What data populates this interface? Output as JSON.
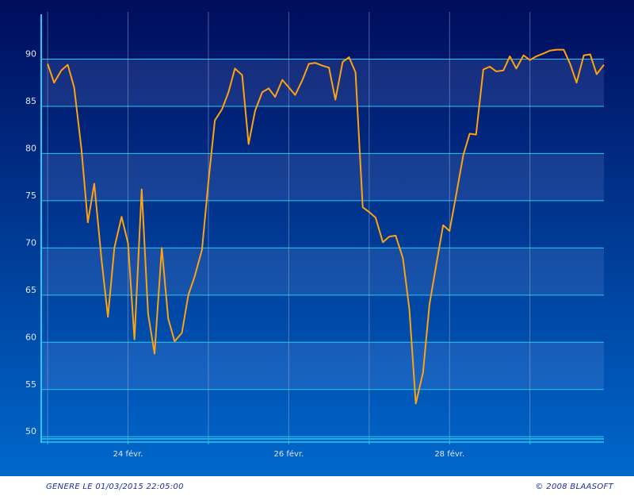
{
  "chart_data": {
    "type": "line",
    "x": [
      23.0,
      23.08,
      23.17,
      23.25,
      23.33,
      23.42,
      23.5,
      23.58,
      23.67,
      23.75,
      23.83,
      23.92,
      24.0,
      24.08,
      24.17,
      24.25,
      24.33,
      24.42,
      24.5,
      24.58,
      24.67,
      24.75,
      24.83,
      24.92,
      25.0,
      25.08,
      25.17,
      25.25,
      25.33,
      25.42,
      25.5,
      25.58,
      25.67,
      25.75,
      25.83,
      25.92,
      26.0,
      26.08,
      26.17,
      26.25,
      26.33,
      26.42,
      26.5,
      26.58,
      26.67,
      26.75,
      26.83,
      26.92,
      27.0,
      27.08,
      27.17,
      27.25,
      27.33,
      27.42,
      27.5,
      27.58,
      27.67,
      27.75,
      27.83,
      27.92,
      28.0,
      28.08,
      28.17,
      28.25,
      28.33,
      28.42,
      28.5,
      28.58,
      28.67,
      28.75,
      28.83,
      28.92,
      29.0,
      29.08,
      29.17,
      29.25,
      29.33,
      29.42,
      29.5,
      29.58,
      29.67,
      29.75,
      29.83,
      29.92
    ],
    "series": [
      {
        "color": "#ffa20f",
        "values": [
          89.5,
          87.5,
          88.8,
          89.4,
          87,
          80.5,
          72.7,
          76.8,
          68.8,
          62.7,
          70,
          73.3,
          70.5,
          60.3,
          76.2,
          63,
          58.8,
          70,
          62.5,
          60.1,
          61,
          65,
          67,
          69.8,
          77,
          83.5,
          84.7,
          86.5,
          89,
          88.3,
          81,
          84.5,
          86.5,
          86.9,
          86,
          87.8,
          87,
          86.2,
          87.8,
          89.5,
          89.6,
          89.3,
          89.1,
          85.7,
          89.7,
          90.2,
          88.6,
          74.3,
          73.8,
          73.2,
          70.6,
          71.2,
          71.3,
          68.9,
          63.5,
          53.5,
          56.8,
          64,
          68,
          72.4,
          71.8,
          75.5,
          79.8,
          82.1,
          82,
          88.9,
          89.2,
          88.7,
          88.8,
          90.3,
          89,
          90.4,
          89.9,
          90.3,
          90.6,
          90.9,
          91,
          91,
          89.5,
          87.5,
          90.4,
          90.5,
          88.4,
          89.4
        ]
      }
    ],
    "xlim": [
      22.92,
      29.92
    ],
    "xticks": [
      {
        "value": 24,
        "label": "24 févr."
      },
      {
        "value": 26,
        "label": "26 févr."
      },
      {
        "value": 28,
        "label": "28 févr."
      }
    ],
    "xgrid": [
      23,
      24,
      25,
      26,
      27,
      28,
      29
    ],
    "ylim": [
      49.6,
      95
    ],
    "yticks": [
      50,
      55,
      60,
      65,
      70,
      75,
      80,
      85,
      90
    ],
    "grid": true
  },
  "footer": {
    "generated": "GENERE LE 01/03/2015 22:05:00",
    "copyright": "© 2008 BLAASOFT"
  }
}
